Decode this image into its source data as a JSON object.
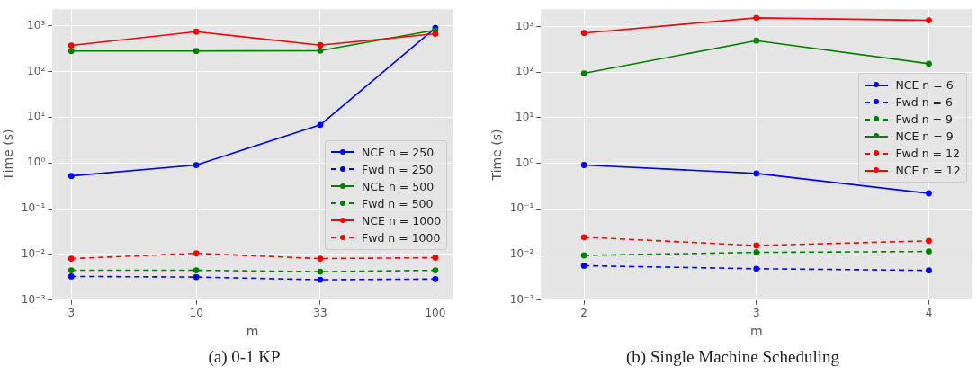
{
  "chart_data": [
    {
      "type": "line",
      "xlabel": "m",
      "ylabel": "Time (s)",
      "x": [
        3,
        10,
        33,
        100
      ],
      "log": "xy",
      "grid": true,
      "legend": "right",
      "marker": "circle",
      "xlim": [
        2.5,
        118
      ],
      "xticks": [
        3,
        10,
        33,
        100
      ],
      "ylim": [
        0.001,
        2300
      ],
      "yticks": [
        {
          "value": 0.001,
          "label": "10⁻³"
        },
        {
          "value": 0.01,
          "label": "10⁻²"
        },
        {
          "value": 0.1,
          "label": "10⁻¹"
        },
        {
          "value": 1,
          "label": "10⁰"
        },
        {
          "value": 10,
          "label": "10¹"
        },
        {
          "value": 100,
          "label": "10²"
        },
        {
          "value": 1000,
          "label": "10³"
        }
      ],
      "annotations": [
        "(a) 0-1 KP"
      ],
      "series": [
        {
          "name": "NCE n = 250",
          "color": "#0000ff",
          "line_style": "solid",
          "values": [
            0.52,
            0.9,
            6.8,
            890
          ]
        },
        {
          "name": "Fwd n = 250",
          "color": "#0000ff",
          "line_style": "dashed",
          "values": [
            0.0033,
            0.0032,
            0.0028,
            0.0029
          ]
        },
        {
          "name": "NCE n = 500",
          "color": "#008000",
          "line_style": "solid",
          "values": [
            280,
            280,
            285,
            800
          ]
        },
        {
          "name": "Fwd n = 500",
          "color": "#008000",
          "line_style": "dashed",
          "values": [
            0.0045,
            0.0045,
            0.0042,
            0.0045
          ]
        },
        {
          "name": "NCE n = 1000",
          "color": "#ff0000",
          "line_style": "solid",
          "values": [
            370,
            740,
            375,
            670
          ]
        },
        {
          "name": "Fwd n = 1000",
          "color": "#ff0000",
          "line_style": "dashed",
          "values": [
            0.0081,
            0.0106,
            0.0081,
            0.0085
          ]
        }
      ]
    },
    {
      "type": "line",
      "xlabel": "m",
      "ylabel": "Time (s)",
      "x": [
        2,
        3,
        4
      ],
      "log": "y",
      "grid": true,
      "legend": "right",
      "marker": "circle",
      "xlim": [
        1.75,
        4.25
      ],
      "xticks": [
        2,
        3,
        4
      ],
      "ylim": [
        0.001,
        2400
      ],
      "yticks": [
        {
          "value": 0.001,
          "label": "10⁻³"
        },
        {
          "value": 0.01,
          "label": "10⁻²"
        },
        {
          "value": 0.1,
          "label": "10⁻¹"
        },
        {
          "value": 1,
          "label": "10⁰"
        },
        {
          "value": 10,
          "label": "10¹"
        },
        {
          "value": 100,
          "label": "10²"
        },
        {
          "value": 1000,
          "label": "10³"
        }
      ],
      "annotations": [
        "(b) Single Machine Scheduling"
      ],
      "series": [
        {
          "name": "NCE n = 6",
          "color": "#0000ff",
          "line_style": "solid",
          "values": [
            0.92,
            0.6,
            0.22
          ]
        },
        {
          "name": "Fwd n = 6",
          "color": "#0000ff",
          "line_style": "dashed",
          "values": [
            0.0057,
            0.0049,
            0.0045
          ]
        },
        {
          "name": "Fwd n = 9",
          "color": "#008000",
          "line_style": "dashed",
          "values": [
            0.0096,
            0.0112,
            0.0117
          ]
        },
        {
          "name": "NCE n = 9",
          "color": "#008000",
          "line_style": "solid",
          "values": [
            94,
            490,
            153
          ]
        },
        {
          "name": "Fwd n = 12",
          "color": "#ff0000",
          "line_style": "dashed",
          "values": [
            0.024,
            0.0158,
            0.02
          ]
        },
        {
          "name": "NCE n = 12",
          "color": "#ff0000",
          "line_style": "solid",
          "values": [
            720,
            1550,
            1370
          ]
        }
      ]
    }
  ]
}
